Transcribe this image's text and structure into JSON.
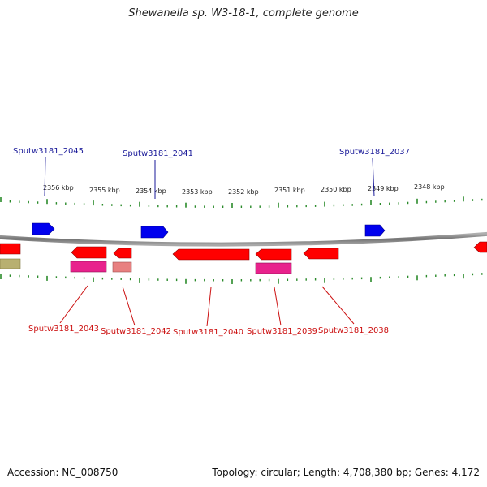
{
  "title": "Shewanella sp. W3-18-1, complete genome",
  "footer": {
    "accession": "Accession: NC_008750",
    "summary": "Topology: circular; Length: 4,708,380 bp; Genes: 4,172"
  },
  "scale_labels": [
    "2356 kbp",
    "2355 kbp",
    "2354 kbp",
    "2353 kbp",
    "2352 kbp",
    "2351 kbp",
    "2350 kbp",
    "2349 kbp",
    "2348 kbp"
  ],
  "genes_top": [
    "Sputw3181_2045",
    "Sputw3181_2041",
    "Sputw3181_2037"
  ],
  "genes_bottom": [
    "Sputw3181_2043",
    "Sputw3181_2042",
    "Sputw3181_2040",
    "Sputw3181_2039",
    "Sputw3181_2038"
  ],
  "colors": {
    "forward_gene": "#0000ee",
    "reverse_gene": "#ff0000",
    "rna_feature": "#e8228c",
    "pseudo_feature": "#e88080",
    "other_feature": "#b8b070",
    "backbone": "#888888",
    "ticks": "#2a8a2a",
    "top_label": "#1a1a99",
    "bottom_label": "#cc1111"
  }
}
